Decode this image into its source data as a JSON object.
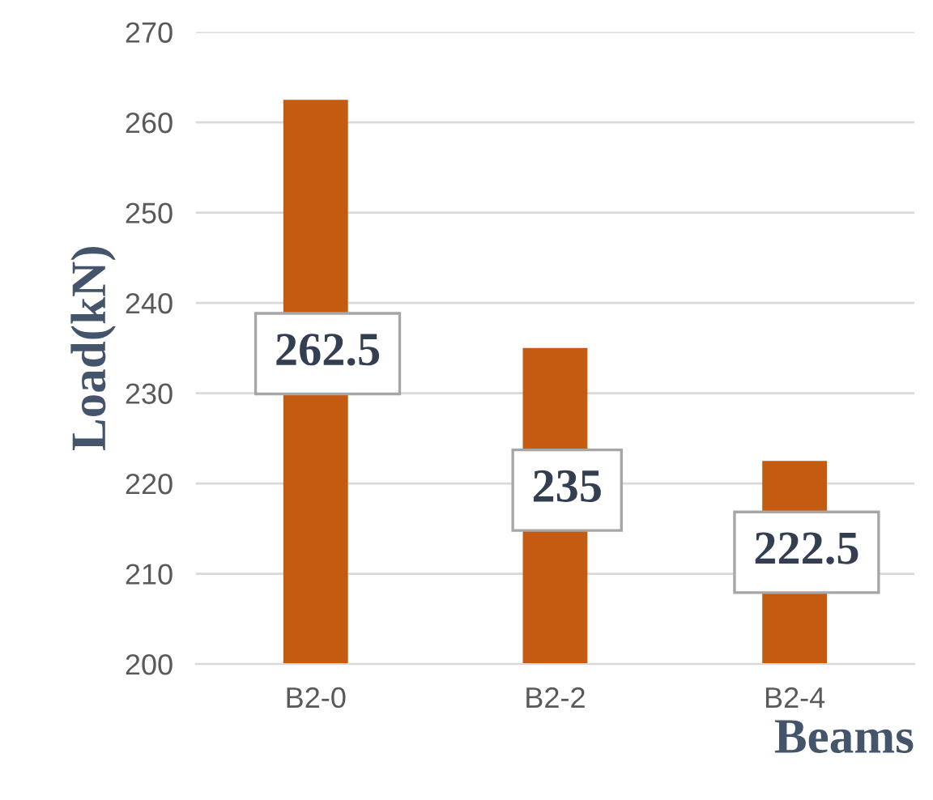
{
  "chart_data": {
    "type": "bar",
    "xlabel": "Beams",
    "ylabel": "Load(kN)",
    "categories": [
      "B2-0",
      "B2-2",
      "B2-4"
    ],
    "values": [
      262.5,
      235,
      222.5
    ],
    "color": "#c55a11",
    "ylim": [
      200,
      270
    ],
    "yticks": [
      200,
      210,
      220,
      230,
      240,
      250,
      260,
      270
    ],
    "grid": "y",
    "data_labels": true
  }
}
